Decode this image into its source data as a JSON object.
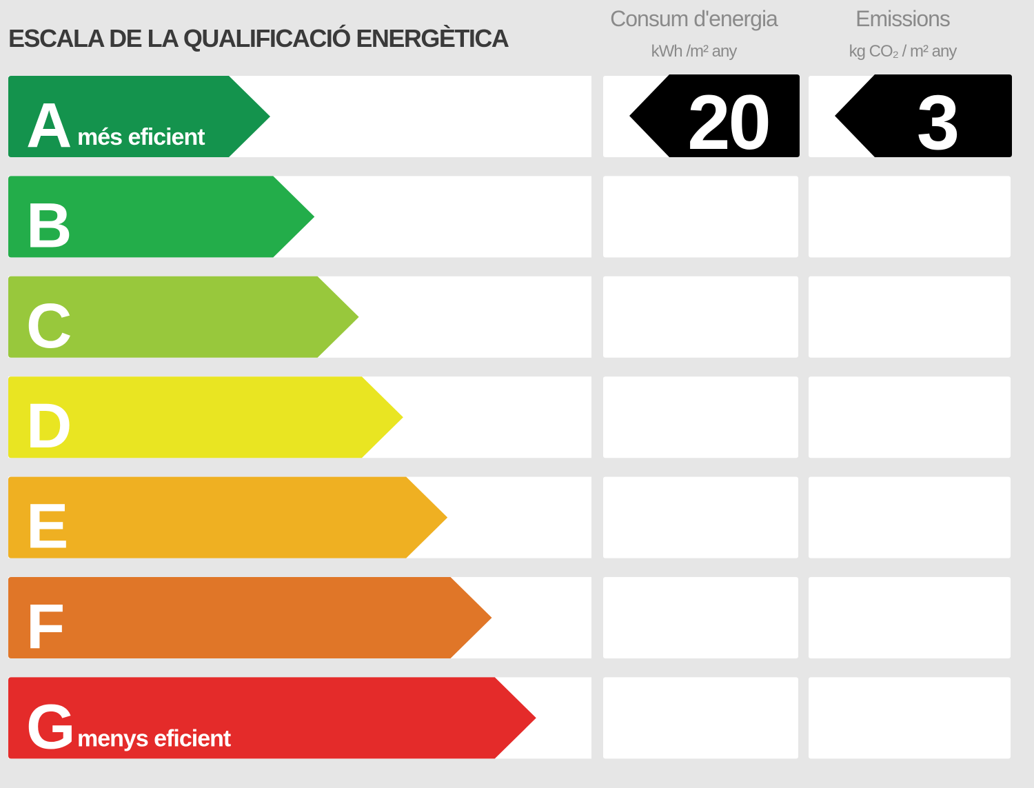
{
  "title": "ESCALA DE LA QUALIFICACIÓ ENERGÈTICA",
  "columns": [
    {
      "title": "Consum d'energia",
      "unit": "kWh /m² any",
      "grade": "A",
      "value": 20
    },
    {
      "title": "Emissions",
      "unit": "kg CO₂ / m² any",
      "grade": "A",
      "value": 3
    }
  ],
  "grades": [
    {
      "letter": "A",
      "note": "més eficient",
      "color": "#14934d"
    },
    {
      "letter": "B",
      "color": "#23ad4a"
    },
    {
      "letter": "C",
      "color": "#98c83c"
    },
    {
      "letter": "D",
      "color": "#e9e522"
    },
    {
      "letter": "E",
      "color": "#efb022"
    },
    {
      "letter": "F",
      "color": "#e07628"
    },
    {
      "letter": "G",
      "note": "menys eficient",
      "color": "#e42b2a"
    }
  ]
}
